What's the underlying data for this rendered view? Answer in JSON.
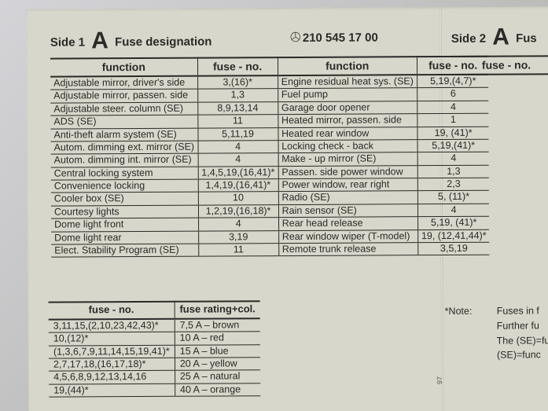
{
  "header": {
    "side": "Side 1",
    "letter": "A",
    "title": "Fuse designation"
  },
  "header2": {
    "side": "Side 2",
    "letter": "A",
    "title": "Fus"
  },
  "part_number": "210 545 17 00",
  "columns": {
    "fn": "function",
    "fno": "fuse - no.",
    "rating": "fuse rating+col."
  },
  "rows_left": [
    {
      "fn": "Adjustable mirror, driver's side",
      "fno": "3,(16)*"
    },
    {
      "fn": "Adjustable mirror, passen. side",
      "fno": "1,3"
    },
    {
      "fn": "Adjustable steer. column (SE)",
      "fno": "8,9,13,14"
    },
    {
      "fn": "ADS (SE)",
      "fno": "11"
    },
    {
      "fn": "Anti-theft alarm system (SE)",
      "fno": "5,11,19"
    },
    {
      "fn": "Autom. dimming ext. mirror (SE)",
      "fno": "4"
    },
    {
      "fn": "Autom. dimming int. mirror (SE)",
      "fno": "4"
    },
    {
      "fn": "Central locking system",
      "fno": "1,4,5,19,(16,41)*"
    },
    {
      "fn": "Convenience locking",
      "fno": "1,4,19,(16,41)*"
    },
    {
      "fn": "Cooler box (SE)",
      "fno": "10"
    },
    {
      "fn": "Courtesy lights",
      "fno": "1,2,19,(16,18)*"
    },
    {
      "fn": "Dome light front",
      "fno": "4"
    },
    {
      "fn": "Dome light rear",
      "fno": "3,19"
    },
    {
      "fn": "Elect. Stability Program (SE)",
      "fno": "11"
    }
  ],
  "rows_mid": [
    {
      "fn": "Engine residual heat sys. (SE)",
      "fno": "5,19,(4,7)*"
    },
    {
      "fn": "Fuel pump",
      "fno": "6"
    },
    {
      "fn": "Garage door opener",
      "fno": "4"
    },
    {
      "fn": "Heated mirror, passen. side",
      "fno": "1"
    },
    {
      "fn": "Heated rear window",
      "fno": "19, (41)*"
    },
    {
      "fn": "Locking check - back",
      "fno": "5,19,(41)*"
    },
    {
      "fn": "Make - up mirror (SE)",
      "fno": "4"
    },
    {
      "fn": "Passen. side power window",
      "fno": "1,3"
    },
    {
      "fn": "Power window, rear right",
      "fno": "2,3"
    },
    {
      "fn": "Radio (SE)",
      "fno": "5, (11)*"
    },
    {
      "fn": "Rain sensor (SE)",
      "fno": "4"
    },
    {
      "fn": "Rear head release",
      "fno": "5,19, (41)*"
    },
    {
      "fn": "Rear window wiper (T-model)",
      "fno": "19, (12,41,44)*"
    },
    {
      "fn": "Remote trunk release",
      "fno": "3,5,19"
    }
  ],
  "ratings": [
    {
      "fno": "3,11,15,(2,10,23,42,43)*",
      "r": "7,5 A – brown"
    },
    {
      "fno": "10,(12)*",
      "r": "10 A – red"
    },
    {
      "fno": "(1,3,6,7,9,11,14,15,19,41)*",
      "r": "15 A – blue"
    },
    {
      "fno": "2,7,17,18,(16,17,18)*",
      "r": "20 A – yellow"
    },
    {
      "fno": "4,5,6,8,9,12,13,14,16",
      "r": "25 A – natural"
    },
    {
      "fno": "19,(44)*",
      "r": "40 A – orange"
    }
  ],
  "notes": {
    "star": "*Note:",
    "l1": "Fuses in f",
    "l2": "Further fu",
    "l3": "The (SE)=func",
    "l4": "(SE)=func"
  },
  "tiny": "97"
}
